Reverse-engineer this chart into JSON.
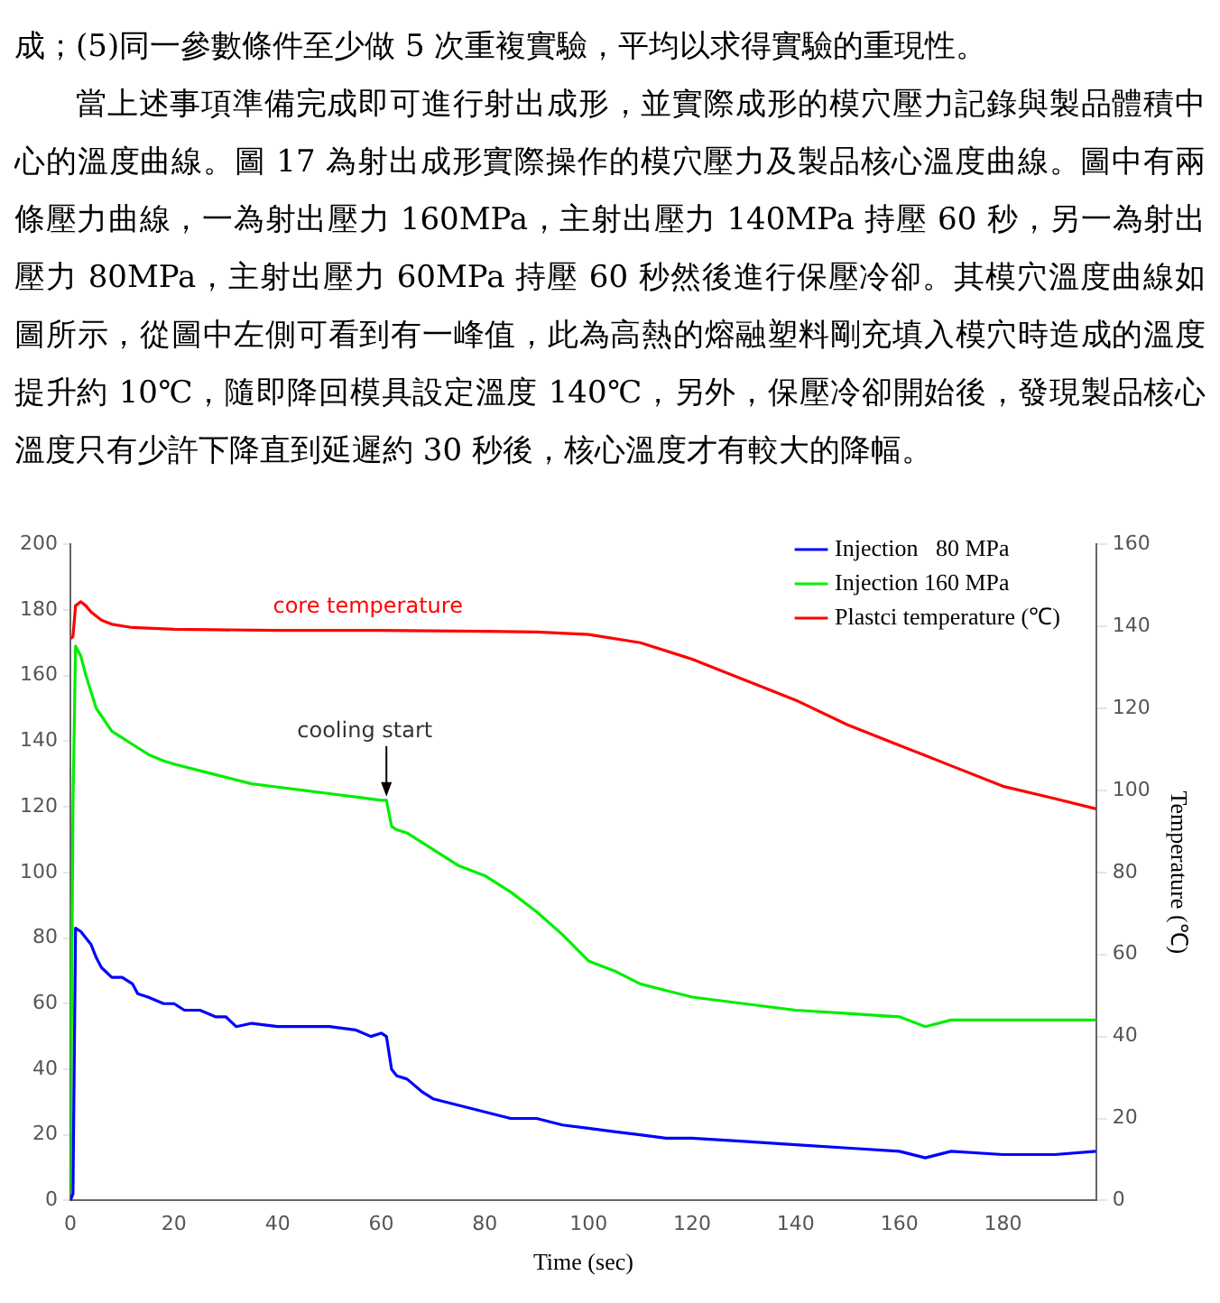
{
  "chart_data": {
    "type": "line",
    "xlabel": "Time (sec)",
    "y2label": "Temperature (℃)",
    "annotations": [
      "core temperature",
      "成；(5)同一參數條件至少做 5 次重複實驗，平均以求得實驗的重現性。",
      "當上述事項準備完成即可進行射出成形，並實際成形的模穴壓力記錄與製品體積中心的溫度曲線。圖 17 為射出成形實際操作的模穴壓力及製品核心溫度曲線。圖中有兩條壓力曲線，一為射出壓力 160MPa，主射出壓力 140MPa 持壓 60 秒，另一為射出壓力 80MPa，主射出壓力 60MPa 持壓 60 秒然後進行保壓冷卻。其模穴溫度曲線如圖所示，從圖中左側可看到有一峰值，此為高熱的熔融塑料剛充填入模穴時造成的溫度提升約 10℃，隨即降回模具設定溫度 140℃，另外，保壓冷卻開始後，發現製品核心溫度只有少許下降直到延遲約 30 秒後，核心溫度才有較大的降幅。",
      {
        "text": "cooling start",
        "x": 61,
        "y": 122
      }
    ],
    "series": [
      {
        "name": "Injection   80 MPa",
        "color": "#0000ff",
        "x": [
          0,
          0.5,
          1,
          2,
          3,
          4,
          5,
          6,
          8,
          10,
          12,
          13,
          15,
          18,
          20,
          22,
          25,
          28,
          30,
          32,
          35,
          40,
          45,
          50,
          55,
          58,
          60,
          61,
          62,
          63,
          65,
          68,
          70,
          75,
          80,
          85,
          90,
          95,
          100,
          105,
          110,
          115,
          120,
          130,
          140,
          150,
          160,
          165,
          170,
          180,
          190,
          198
        ],
        "values": [
          0,
          2,
          83,
          82,
          80,
          78,
          74,
          71,
          68,
          68,
          66,
          63,
          62,
          60,
          60,
          58,
          58,
          56,
          56,
          53,
          54,
          53,
          53,
          53,
          52,
          50,
          51,
          50,
          40,
          38,
          37,
          33,
          31,
          29,
          27,
          25,
          25,
          23,
          22,
          21,
          20,
          19,
          19,
          18,
          17,
          16,
          15,
          13,
          15,
          14,
          14,
          15
        ]
      },
      {
        "name": "Injection 160 MPa",
        "color": "#00ee00",
        "x": [
          0,
          0.5,
          1,
          2,
          3,
          5,
          8,
          10,
          12,
          15,
          18,
          20,
          25,
          30,
          35,
          40,
          45,
          50,
          55,
          60,
          61,
          62,
          63,
          65,
          70,
          75,
          80,
          85,
          90,
          95,
          100,
          105,
          110,
          115,
          120,
          130,
          140,
          150,
          160,
          165,
          170,
          180,
          190,
          198
        ],
        "values": [
          2,
          120,
          169,
          166,
          160,
          150,
          143,
          141,
          139,
          136,
          134,
          133,
          131,
          129,
          127,
          126,
          125,
          124,
          123,
          122,
          122,
          114,
          113,
          112,
          107,
          102,
          99,
          94,
          88,
          81,
          73,
          70,
          66,
          64,
          62,
          60,
          58,
          57,
          56,
          53,
          55,
          55,
          55,
          55
        ]
      },
      {
        "name": "Plastci temperature (℃)",
        "color": "#ff0000",
        "axis": "y2",
        "x": [
          0,
          0.5,
          1,
          2,
          3,
          4,
          6,
          8,
          12,
          20,
          40,
          60,
          80,
          90,
          100,
          110,
          120,
          130,
          140,
          150,
          160,
          170,
          180,
          190,
          198
        ],
        "values": [
          137,
          137.5,
          145,
          146,
          145,
          143.5,
          141.5,
          140.5,
          139.7,
          139.3,
          139,
          139,
          138.8,
          138.6,
          138,
          136,
          132,
          127,
          122,
          116,
          111,
          106,
          101,
          98,
          95.5
        ]
      }
    ],
    "xlim": [
      0,
      198
    ],
    "xticks": [
      0,
      20,
      40,
      60,
      80,
      100,
      120,
      140,
      160,
      180
    ],
    "ylim": [
      0,
      200
    ],
    "yticks": [
      0,
      20,
      40,
      60,
      80,
      100,
      120,
      140,
      160,
      180,
      200
    ],
    "y2lim": [
      0,
      160
    ],
    "y2ticks": [
      0,
      20,
      40,
      60,
      80,
      100,
      120,
      140,
      160
    ],
    "legend": "top right",
    "grid": false,
    "marker": "none",
    "line_style": "solid"
  }
}
